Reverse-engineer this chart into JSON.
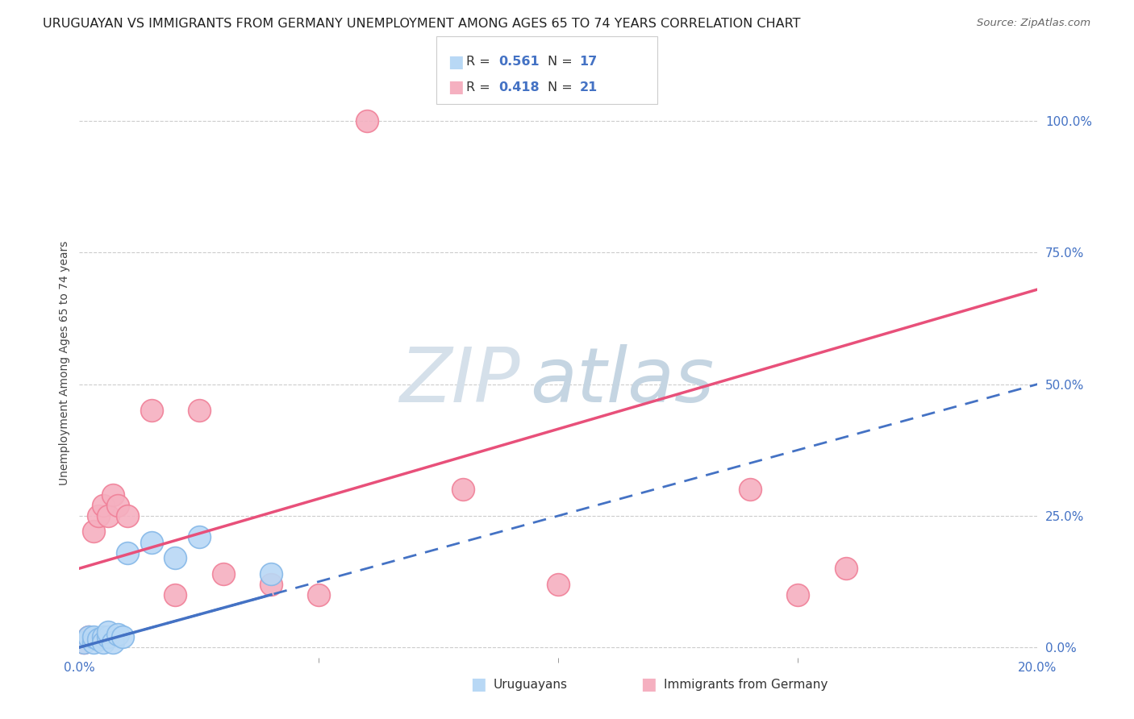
{
  "title": "URUGUAYAN VS IMMIGRANTS FROM GERMANY UNEMPLOYMENT AMONG AGES 65 TO 74 YEARS CORRELATION CHART",
  "source": "Source: ZipAtlas.com",
  "ylabel": "Unemployment Among Ages 65 to 74 years",
  "background_color": "#ffffff",
  "uruguayans": {
    "label": "Uruguayans",
    "R": 0.561,
    "N": 17,
    "color_edge": "#85B8E8",
    "color_fill": "#B8D8F5",
    "line_color": "#4472C4",
    "line_style": "--",
    "x": [
      0.001,
      0.002,
      0.003,
      0.003,
      0.004,
      0.005,
      0.005,
      0.006,
      0.006,
      0.007,
      0.008,
      0.009,
      0.01,
      0.015,
      0.02,
      0.025,
      0.04
    ],
    "y": [
      0.01,
      0.02,
      0.01,
      0.02,
      0.015,
      0.02,
      0.01,
      0.02,
      0.03,
      0.01,
      0.025,
      0.02,
      0.18,
      0.2,
      0.17,
      0.21,
      0.14
    ]
  },
  "immigrants": {
    "label": "Immigrants from Germany",
    "R": 0.418,
    "N": 21,
    "color_edge": "#F08098",
    "color_fill": "#F5B0C0",
    "line_color": "#E8507A",
    "line_style": "-",
    "x": [
      0.001,
      0.002,
      0.003,
      0.004,
      0.005,
      0.006,
      0.007,
      0.008,
      0.01,
      0.015,
      0.02,
      0.025,
      0.03,
      0.04,
      0.05,
      0.06,
      0.08,
      0.1,
      0.14,
      0.15,
      0.16
    ],
    "y": [
      0.01,
      0.02,
      0.22,
      0.25,
      0.27,
      0.25,
      0.29,
      0.27,
      0.25,
      0.45,
      0.1,
      0.45,
      0.14,
      0.12,
      0.1,
      1.0,
      0.3,
      0.12,
      0.3,
      0.1,
      0.15
    ]
  },
  "blue_line": {
    "x0": 0.0,
    "y0": 0.0,
    "x1": 0.2,
    "y1": 0.5
  },
  "pink_line": {
    "x0": 0.0,
    "y0": 0.15,
    "x1": 0.2,
    "y1": 0.68
  },
  "xlim": [
    0.0,
    0.2
  ],
  "ylim": [
    -0.02,
    1.1
  ],
  "yticks_right": [
    0.0,
    0.25,
    0.5,
    0.75,
    1.0
  ],
  "ytick_labels_right": [
    "0.0%",
    "25.0%",
    "50.0%",
    "75.0%",
    "100.0%"
  ],
  "xtick_positions": [
    0.0,
    0.2
  ],
  "xtick_labels": [
    "0.0%",
    "20.0%"
  ],
  "grid_color": "#cccccc",
  "title_fontsize": 11.5,
  "label_fontsize": 10,
  "tick_fontsize": 11,
  "watermark_zi": "ZIP",
  "watermark_atlas": "atlas",
  "watermark_color_zi": "#d0dce8",
  "watermark_color_atlas": "#c0ccd8",
  "watermark_fontsize": 68
}
